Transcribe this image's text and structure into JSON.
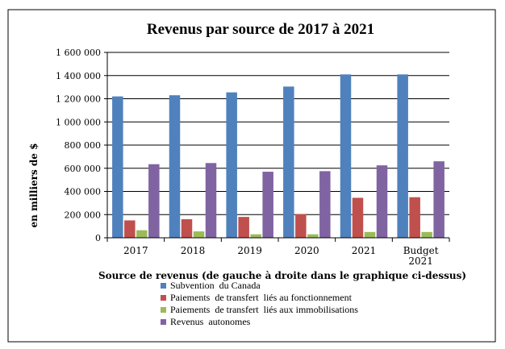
{
  "chart_data": {
    "type": "bar",
    "title": "Revenus par source de 2017 à 2021",
    "ylabel": "en milliers de $",
    "xlabel": "Source de revenus (de gauche à droite dans le graphique ci-dessus)",
    "ylim": [
      0,
      1600000
    ],
    "y_ticks": [
      0,
      200000,
      400000,
      600000,
      800000,
      1000000,
      1200000,
      1400000,
      1600000
    ],
    "y_tick_labels": [
      "0",
      "200 000",
      "400 000",
      "600 000",
      "800 000",
      "1 000 000",
      "1 200 000",
      "1 400 000",
      "1 600 000"
    ],
    "grid": true,
    "legend_position": "bottom-center",
    "categories": [
      "2017",
      "2018",
      "2019",
      "2020",
      "2021",
      "Budget 2021"
    ],
    "series": [
      {
        "name": "Subvention  du Canada",
        "color": "#4F81BD",
        "values": [
          1220000,
          1230000,
          1255000,
          1305000,
          1410000,
          1410000
        ]
      },
      {
        "name": "Paiements  de transfert  liés au fonctionnement",
        "color": "#C0504D",
        "values": [
          150000,
          160000,
          180000,
          205000,
          345000,
          350000
        ]
      },
      {
        "name": "Paiements  de transfert  liés aux immobilisations",
        "color": "#9BBB59",
        "values": [
          65000,
          55000,
          30000,
          30000,
          50000,
          50000
        ]
      },
      {
        "name": "Revenus  autonomes",
        "color": "#8064A2",
        "values": [
          635000,
          645000,
          570000,
          575000,
          625000,
          660000
        ]
      }
    ]
  }
}
